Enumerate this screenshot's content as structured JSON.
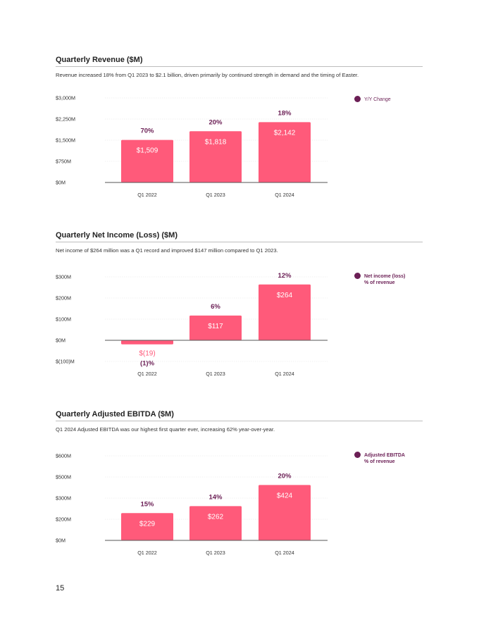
{
  "colors": {
    "bar": "#ff5a7a",
    "accent": "#6b1f55",
    "negative": "#ff5a7a",
    "axis": "#555555",
    "grid": "#e6e6e6"
  },
  "page_number": "15",
  "charts": [
    {
      "id": "revenue",
      "section_title": "Quarterly Revenue ($M)",
      "description": "Revenue increased 18% from Q1 2023 to $2.1 billion, driven primarily by continued strength in demand and the timing of Easter.",
      "legend": {
        "line1": "Y/Y Change",
        "line2": ""
      }
    },
    {
      "id": "net-income",
      "section_title": "Quarterly Net Income (Loss) ($M)",
      "description": "Net income of $264 million was a Q1 record and improved $147 million compared to Q1 2023.",
      "legend": {
        "line1": "Net income (loss)",
        "line2": "% of revenue"
      }
    },
    {
      "id": "adjusted-ebitda",
      "section_title": "Quarterly Adjusted EBITDA ($M)",
      "description": "Q1 2024 Adjusted EBITDA was our highest first quarter ever, increasing 62% year-over-year.",
      "legend": {
        "line1": "Adjusted EBITDA",
        "line2": "% of revenue"
      }
    }
  ],
  "chart_data": [
    {
      "type": "bar",
      "title": "Quarterly Revenue ($M)",
      "categories": [
        "Q1 2022",
        "Q1 2023",
        "Q1 2024"
      ],
      "values": [
        1509,
        1818,
        2142
      ],
      "value_labels": [
        "$1,509",
        "$1,818",
        "$2,142"
      ],
      "annotations": [
        "70%",
        "20%",
        "18%"
      ],
      "yticks": [
        0,
        750,
        1500,
        2250,
        3000
      ],
      "ytick_labels": [
        "$0M",
        "$750M",
        "$1,500M",
        "$2,250M",
        "$3,000M"
      ],
      "ylim": [
        0,
        3000
      ],
      "legend_position": "top-right"
    },
    {
      "type": "bar",
      "title": "Quarterly Net Income (Loss) ($M)",
      "categories": [
        "Q1 2022",
        "Q1 2023",
        "Q1 2024"
      ],
      "values": [
        -19,
        117,
        264
      ],
      "value_labels": [
        "$(19)",
        "$117",
        "$264"
      ],
      "annotations": [
        "(1)%",
        "6%",
        "12%"
      ],
      "yticks": [
        -100,
        0,
        100,
        200,
        300
      ],
      "ytick_labels": [
        "$(100)M",
        "$0M",
        "$100M",
        "$200M",
        "$300M"
      ],
      "ylim": [
        -100,
        300
      ],
      "legend_position": "top-right"
    },
    {
      "type": "bar",
      "title": "Quarterly Adjusted EBITDA ($M)",
      "categories": [
        "Q1 2022",
        "Q1 2023",
        "Q1 2024"
      ],
      "values": [
        229,
        262,
        424
      ],
      "value_labels": [
        "$229",
        "$262",
        "$424"
      ],
      "annotations": [
        "15%",
        "14%",
        "20%"
      ],
      "yticks": [
        0,
        200,
        300,
        500,
        600
      ],
      "ytick_labels": [
        "$0M",
        "$200M",
        "$300M",
        "$500M",
        "$600M"
      ],
      "ylim": [
        0,
        600
      ],
      "legend_position": "top-right"
    }
  ]
}
